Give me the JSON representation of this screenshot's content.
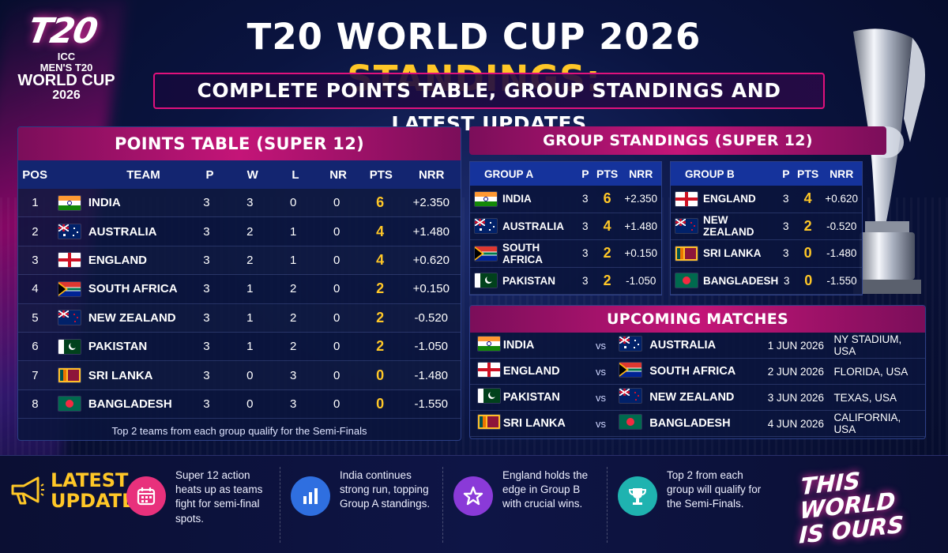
{
  "logo": {
    "mark": "T20",
    "line1": "ICC",
    "line2": "MEN'S T20",
    "line3": "WORLD CUP",
    "line4": "2026"
  },
  "title": {
    "white": "T20 WORLD CUP 2026 ",
    "yellow": "STANDINGS:"
  },
  "subtitle": "COMPLETE POINTS TABLE, GROUP STANDINGS AND LATEST UPDATES",
  "points_table": {
    "heading": "POINTS TABLE (SUPER 12)",
    "columns": {
      "pos": "POS",
      "team": "TEAM",
      "p": "P",
      "w": "W",
      "l": "L",
      "nr": "NR",
      "pts": "PTS",
      "nrr": "NRR"
    },
    "rows": [
      {
        "pos": "1",
        "team": "INDIA",
        "p": "3",
        "w": "3",
        "l": "0",
        "nr": "0",
        "pts": "6",
        "nrr": "+2.350",
        "flag": "india"
      },
      {
        "pos": "2",
        "team": "AUSTRALIA",
        "p": "3",
        "w": "2",
        "l": "1",
        "nr": "0",
        "pts": "4",
        "nrr": "+1.480",
        "flag": "australia"
      },
      {
        "pos": "3",
        "team": "ENGLAND",
        "p": "3",
        "w": "2",
        "l": "1",
        "nr": "0",
        "pts": "4",
        "nrr": "+0.620",
        "flag": "england"
      },
      {
        "pos": "4",
        "team": "SOUTH AFRICA",
        "p": "3",
        "w": "1",
        "l": "2",
        "nr": "0",
        "pts": "2",
        "nrr": "+0.150",
        "flag": "southafrica"
      },
      {
        "pos": "5",
        "team": "NEW ZEALAND",
        "p": "3",
        "w": "1",
        "l": "2",
        "nr": "0",
        "pts": "2",
        "nrr": "-0.520",
        "flag": "newzealand"
      },
      {
        "pos": "6",
        "team": "PAKISTAN",
        "p": "3",
        "w": "1",
        "l": "2",
        "nr": "0",
        "pts": "2",
        "nrr": "-1.050",
        "flag": "pakistan"
      },
      {
        "pos": "7",
        "team": "SRI LANKA",
        "p": "3",
        "w": "0",
        "l": "3",
        "nr": "0",
        "pts": "0",
        "nrr": "-1.480",
        "flag": "srilanka"
      },
      {
        "pos": "8",
        "team": "BANGLADESH",
        "p": "3",
        "w": "0",
        "l": "3",
        "nr": "0",
        "pts": "0",
        "nrr": "-1.550",
        "flag": "bangladesh"
      }
    ],
    "footnote": "Top 2 teams from each group qualify for the Semi-Finals"
  },
  "group_standings": {
    "heading": "GROUP STANDINGS (SUPER 12)",
    "groups": [
      {
        "name": "GROUP A",
        "col_p": "P",
        "col_pts": "PTS",
        "col_nrr": "NRR",
        "rows": [
          {
            "team": "INDIA",
            "p": "3",
            "pts": "6",
            "nrr": "+2.350",
            "flag": "india"
          },
          {
            "team": "AUSTRALIA",
            "p": "3",
            "pts": "4",
            "nrr": "+1.480",
            "flag": "australia"
          },
          {
            "team": "SOUTH AFRICA",
            "p": "3",
            "pts": "2",
            "nrr": "+0.150",
            "flag": "southafrica"
          },
          {
            "team": "PAKISTAN",
            "p": "3",
            "pts": "2",
            "nrr": "-1.050",
            "flag": "pakistan"
          }
        ]
      },
      {
        "name": "GROUP B",
        "col_p": "P",
        "col_pts": "PTS",
        "col_nrr": "NRR",
        "rows": [
          {
            "team": "ENGLAND",
            "p": "3",
            "pts": "4",
            "nrr": "+0.620",
            "flag": "england"
          },
          {
            "team": "NEW ZEALAND",
            "p": "3",
            "pts": "2",
            "nrr": "-0.520",
            "flag": "newzealand"
          },
          {
            "team": "SRI LANKA",
            "p": "3",
            "pts": "0",
            "nrr": "-1.480",
            "flag": "srilanka"
          },
          {
            "team": "BANGLADESH",
            "p": "3",
            "pts": "0",
            "nrr": "-1.550",
            "flag": "bangladesh"
          }
        ]
      }
    ]
  },
  "upcoming": {
    "heading": "UPCOMING MATCHES",
    "vs": "vs",
    "matches": [
      {
        "team1": "INDIA",
        "flag1": "india",
        "team2": "AUSTRALIA",
        "flag2": "australia",
        "date": "1 JUN 2026",
        "venue": "NY STADIUM, USA"
      },
      {
        "team1": "ENGLAND",
        "flag1": "england",
        "team2": "SOUTH AFRICA",
        "flag2": "southafrica",
        "date": "2 JUN 2026",
        "venue": "FLORIDA, USA"
      },
      {
        "team1": "PAKISTAN",
        "flag1": "pakistan",
        "team2": "NEW ZEALAND",
        "flag2": "newzealand",
        "date": "3 JUN 2026",
        "venue": "TEXAS, USA"
      },
      {
        "team1": "SRI LANKA",
        "flag1": "srilanka",
        "team2": "BANGLADESH",
        "flag2": "bangladesh",
        "date": "4 JUN 2026",
        "venue": "CALIFORNIA, USA"
      }
    ]
  },
  "latest": {
    "line1": "LATEST",
    "line2": "UPDATES",
    "items": [
      {
        "icon": "calendar-icon",
        "color": "#e8317c",
        "text": "Super 12 action heats up as teams fight for semi-final spots."
      },
      {
        "icon": "bar-chart-icon",
        "color": "#2f6fe0",
        "text": "India continues strong run, topping Group A standings."
      },
      {
        "icon": "star-icon",
        "color": "#8a3ad8",
        "text": "England holds the edge in Group B with crucial wins."
      },
      {
        "icon": "trophy-icon",
        "color": "#1fb3b0",
        "text": "Top 2 from each group will qualify for the Semi-Finals."
      }
    ]
  },
  "slogan": {
    "line1": "THIS WORLD",
    "line2": "IS OURS"
  },
  "colors": {
    "accent_pink": "#e0117c",
    "accent_yellow": "#ffc727",
    "navy": "#0a1440"
  }
}
